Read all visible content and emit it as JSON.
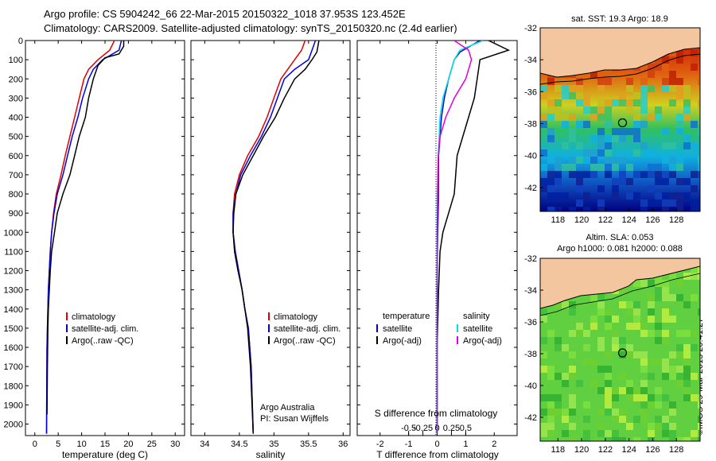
{
  "header": {
    "line1": "Argo profile: CS 5904242_66 22-Mar-2015 20150322_1018 37.953S 123.452E",
    "line2": "Climatology: CARS2009. Satellite-adjusted climatology: synTS_20150320.nc (2.4d earlier)"
  },
  "watermark": "©IMOS 29-Mar-2015 20:41:27",
  "colors": {
    "climatology": "#e00000",
    "satellite": "#0000e0",
    "argo": "#000000",
    "salinity_satellite": "#00e0e0",
    "salinity_argo": "#e000e0",
    "land": "#f4c6a0"
  },
  "chart_data": [
    {
      "type": "line",
      "xlabel": "temperature (deg C)",
      "ylabel": "",
      "xlim": [
        -2,
        32
      ],
      "ylim": [
        2060,
        0
      ],
      "xticks": [
        0,
        5,
        10,
        15,
        20,
        25,
        30
      ],
      "yticks": [
        0,
        100,
        200,
        300,
        400,
        500,
        600,
        700,
        800,
        900,
        1000,
        1100,
        1200,
        1300,
        1400,
        1500,
        1600,
        1700,
        1800,
        1900,
        2000
      ],
      "legend": [
        "climatology",
        "satellite-adj. clim.",
        "Argo(..raw -QC)"
      ],
      "legend_position": "lower-right",
      "series": [
        {
          "name": "climatology",
          "x": [
            17.0,
            16.0,
            13.5,
            11.5,
            10.5,
            9.5,
            8.5,
            7.5,
            6.5,
            5.6,
            4.6,
            4.0,
            3.6,
            3.3,
            3.1,
            2.9,
            2.8,
            2.7,
            2.6,
            2.55,
            2.5
          ],
          "y": [
            0,
            50,
            100,
            150,
            200,
            300,
            400,
            500,
            600,
            700,
            800,
            900,
            1000,
            1100,
            1200,
            1300,
            1400,
            1500,
            1600,
            1800,
            2050
          ]
        },
        {
          "name": "satellite-adj. clim.",
          "x": [
            18.5,
            18.0,
            14.5,
            12.5,
            11.5,
            10.2,
            9.2,
            8.0,
            7.0,
            6.0,
            4.8,
            4.1,
            3.6,
            3.3,
            3.1,
            2.9,
            2.8,
            2.7,
            2.6,
            2.55,
            2.5
          ],
          "y": [
            0,
            50,
            100,
            150,
            200,
            300,
            400,
            500,
            600,
            700,
            800,
            900,
            1000,
            1100,
            1200,
            1300,
            1400,
            1500,
            1600,
            1800,
            2050
          ]
        },
        {
          "name": "Argo(..raw -QC)",
          "x": [
            19.0,
            19.0,
            18.0,
            15.0,
            13.5,
            12.5,
            11.5,
            10.8,
            9.5,
            8.5,
            7.5,
            6.0,
            4.8,
            4.2,
            3.6,
            3.3,
            3.1,
            2.9,
            2.8,
            2.7,
            2.6
          ],
          "y": [
            0,
            30,
            70,
            90,
            130,
            200,
            300,
            400,
            500,
            600,
            700,
            800,
            900,
            1000,
            1100,
            1200,
            1300,
            1400,
            1500,
            1700,
            1950
          ]
        }
      ]
    },
    {
      "type": "line",
      "xlabel": "salinity",
      "ylabel": "",
      "xlim": [
        33.8,
        36.1
      ],
      "ylim": [
        2060,
        0
      ],
      "xticks": [
        34,
        34.5,
        35,
        35.5,
        36
      ],
      "xtick_labels": [
        "34",
        "34.5",
        "35",
        "35.5",
        "36"
      ],
      "legend": [
        "climatology",
        "satellite-adj. clim.",
        "Argo(..raw -QC)"
      ],
      "legend_position": "lower-right",
      "annotation": [
        "Argo Australia",
        "PI: Susan Wijffels"
      ],
      "series": [
        {
          "name": "climatology",
          "x": [
            35.45,
            35.4,
            35.3,
            35.2,
            35.1,
            35.0,
            34.9,
            34.78,
            34.62,
            34.5,
            34.43,
            34.41,
            34.41,
            34.44,
            34.49,
            34.54,
            34.58,
            34.63,
            34.67,
            34.7
          ],
          "y": [
            0,
            50,
            100,
            150,
            200,
            300,
            400,
            500,
            600,
            700,
            800,
            900,
            1000,
            1100,
            1200,
            1300,
            1400,
            1500,
            1700,
            2050
          ]
        },
        {
          "name": "satellite-adj. clim.",
          "x": [
            35.6,
            35.55,
            35.5,
            35.3,
            35.15,
            35.05,
            34.95,
            34.82,
            34.66,
            34.52,
            34.45,
            34.41,
            34.41,
            34.44,
            34.49,
            34.54,
            34.58,
            34.63,
            34.67,
            34.7
          ],
          "y": [
            0,
            50,
            100,
            150,
            200,
            300,
            400,
            500,
            600,
            700,
            800,
            900,
            1000,
            1100,
            1200,
            1300,
            1400,
            1500,
            1700,
            2050
          ]
        },
        {
          "name": "Argo(..raw -QC)",
          "x": [
            35.65,
            35.62,
            35.55,
            35.45,
            35.3,
            35.15,
            35.02,
            34.85,
            34.7,
            34.55,
            34.45,
            34.42,
            34.41,
            34.43,
            34.48,
            34.54,
            34.58,
            34.62,
            34.66,
            34.7
          ],
          "y": [
            0,
            60,
            100,
            150,
            200,
            300,
            400,
            500,
            600,
            700,
            800,
            900,
            1000,
            1100,
            1200,
            1300,
            1400,
            1500,
            1700,
            2050
          ]
        }
      ]
    },
    {
      "type": "line",
      "xlabel": "T difference from climatology",
      "xlabel_top": "S difference from climatology",
      "ylabel": "",
      "xlim": [
        -2.8,
        2.8
      ],
      "ylim": [
        2060,
        0
      ],
      "xticks": [
        -2,
        -1,
        0,
        1,
        2
      ],
      "xtick_labels": [
        "-2",
        "-1",
        "0",
        "1",
        "2"
      ],
      "sticks": [
        -0.5,
        -0.25,
        0,
        0.25,
        0.5
      ],
      "stick_labels": [
        "-0.5",
        "-0.25",
        "0",
        "0.25",
        "0.5"
      ],
      "legend_temperature": [
        "temperature",
        "satellite",
        "Argo(-adj)"
      ],
      "legend_salinity": [
        "salinity",
        "satellite",
        "Argo(-adj)"
      ],
      "series": [
        {
          "name": "satellite",
          "x": [
            1.5,
            0.8,
            0.6,
            0.4,
            0.25,
            0.15,
            0.1,
            0.05,
            0.05,
            0.02,
            0.0,
            0.0,
            0.0,
            0.0,
            0.0
          ],
          "y": [
            0,
            60,
            100,
            200,
            300,
            400,
            500,
            600,
            800,
            1000,
            1200,
            1400,
            1600,
            1800,
            2050
          ]
        },
        {
          "name": "Argo(-adj)",
          "x": [
            1.8,
            2.5,
            1.5,
            1.4,
            1.3,
            1.1,
            0.9,
            0.7,
            0.6,
            0.4,
            0.2,
            0.1,
            0.05,
            0.0,
            0.0
          ],
          "y": [
            0,
            50,
            100,
            200,
            300,
            400,
            500,
            600,
            800,
            900,
            1000,
            1100,
            1300,
            1600,
            2050
          ]
        },
        {
          "name": "satellite",
          "x": [
            0.8,
            0.4,
            0.3,
            0.2,
            0.1,
            0.05,
            0.02,
            0.0,
            0.0,
            0.0
          ],
          "y": [
            0,
            50,
            100,
            200,
            300,
            400,
            600,
            800,
            1200,
            2050
          ]
        },
        {
          "name": "Argo(-adj)",
          "x": [
            0.3,
            0.55,
            0.6,
            0.5,
            0.3,
            0.15,
            0.05,
            0.02,
            0.0,
            0.0
          ],
          "y": [
            0,
            50,
            100,
            200,
            300,
            400,
            500,
            600,
            1000,
            2050
          ]
        }
      ]
    },
    {
      "type": "heatmap",
      "title": "sat. SST: 19.3 Argo: 18.9",
      "xlim": [
        116.5,
        130
      ],
      "ylim": [
        -43.5,
        -32
      ],
      "xticks": [
        118,
        120,
        122,
        124,
        126,
        128
      ],
      "yticks": [
        -32,
        -34,
        -36,
        -38,
        -40,
        -42
      ],
      "marker": {
        "x": 123.45,
        "y": -37.95
      }
    },
    {
      "type": "heatmap",
      "title": "Altim. SLA: 0.053",
      "subtitle": "Argo h1000: 0.081 h2000: 0.088",
      "xlim": [
        116.5,
        130
      ],
      "ylim": [
        -43.5,
        -32
      ],
      "xticks": [
        118,
        120,
        122,
        124,
        126,
        128
      ],
      "yticks": [
        -32,
        -34,
        -36,
        -38,
        -40,
        -42
      ],
      "marker": {
        "x": 123.45,
        "y": -37.95
      }
    }
  ]
}
